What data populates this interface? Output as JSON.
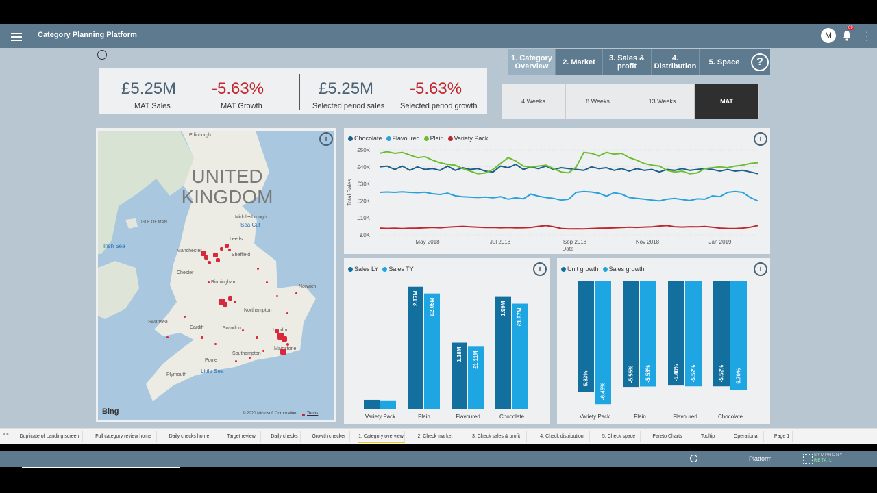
{
  "app": {
    "title": "Category Planning Platform",
    "avatar_initial": "M",
    "notifications": "69"
  },
  "nav": [
    {
      "label": "1. Category Overview",
      "active": true
    },
    {
      "label": "2. Market"
    },
    {
      "label": "3. Sales & profit"
    },
    {
      "label": "4. Distribution"
    },
    {
      "label": "5. Space"
    }
  ],
  "help_icon": "?",
  "periods": [
    "4 Weeks",
    "8 Weeks",
    "13 Weeks",
    "MAT"
  ],
  "selected_period": "MAT",
  "kpis": [
    {
      "value": "£5.25M",
      "label": "MAT Sales"
    },
    {
      "value": "-5.63%",
      "label": "MAT Growth"
    },
    {
      "value": "£5.25M",
      "label": "Selected period sales"
    },
    {
      "value": "-5.63%",
      "label": "Selected period growth"
    }
  ],
  "map": {
    "country": "UNITED KINGDOM",
    "places": [
      "Edinburgh",
      "Middlesbrough",
      "Sea Cut",
      "ISLE OF MAN",
      "Irish Sea",
      "Leeds",
      "Manchester",
      "Sheffield",
      "Chester",
      "Birmingham",
      "Norwich",
      "Northampton",
      "Swansea",
      "Cardiff",
      "Swindon",
      "London",
      "Maidstone",
      "Southampton",
      "Poole",
      "Plymouth",
      "Little Sea"
    ],
    "logo": "Bing",
    "copyright": "© 2020 Microsoft Corporation",
    "terms": "Terms"
  },
  "line_chart": {
    "ylabel": "Total Sales",
    "xlabel": "Date",
    "yticks": [
      "£50K",
      "£40K",
      "£30K",
      "£20K",
      "£10K",
      "£0K"
    ],
    "xticks": [
      "May 2018",
      "Jul 2018",
      "Sep 2018",
      "Nov 2018",
      "Jan 2019"
    ]
  },
  "bar_chart_1": {
    "legend": [
      "Sales LY",
      "Sales TY"
    ],
    "categories": [
      "Variety Pack",
      "Plain",
      "Flavoured",
      "Chocolate"
    ]
  },
  "bar_chart_2": {
    "legend": [
      "Unit growth",
      "Sales growth"
    ],
    "categories": [
      "Variety Pack",
      "Plain",
      "Flavoured",
      "Chocolate"
    ]
  },
  "chart_data": [
    {
      "type": "line",
      "ylim": [
        0,
        50000
      ],
      "x_range": [
        "2018-04-01",
        "2019-03-25"
      ],
      "series": [
        {
          "name": "Chocolate",
          "color": "#1b5f8c",
          "values": [
            40000,
            40500,
            38500,
            40500,
            38000,
            40000,
            38500,
            39000,
            38000,
            40500,
            38000,
            39500,
            38500,
            39000,
            37500,
            37000,
            40500,
            39500,
            41500,
            38500,
            40000,
            39000,
            40500,
            38500,
            39500,
            39000,
            38500,
            38000,
            40000,
            39000,
            39500,
            38000,
            39000,
            37500,
            39000,
            38000,
            38500,
            37000,
            38500,
            38000,
            39000,
            38000,
            38500,
            39000,
            38500,
            37500,
            38500,
            37500,
            38000,
            37000,
            36000
          ]
        },
        {
          "name": "Flavoured",
          "color": "#2aa0dc",
          "values": [
            25000,
            25200,
            25000,
            25300,
            25000,
            24800,
            25100,
            24200,
            23800,
            24500,
            23000,
            22500,
            22200,
            22000,
            22300,
            21800,
            22500,
            21000,
            21800,
            21200,
            24000,
            22800,
            22000,
            21500,
            20500,
            21000,
            25000,
            25500,
            25200,
            24500,
            22800,
            24800,
            24000,
            22000,
            21500,
            21000,
            20500,
            20000,
            21000,
            21500,
            20800,
            20200,
            21200,
            21000,
            23000,
            22500,
            25000,
            25500,
            25000,
            22000,
            20000
          ]
        },
        {
          "name": "Plain",
          "color": "#6ebd30",
          "values": [
            48000,
            49000,
            48000,
            48500,
            47000,
            45500,
            46000,
            44000,
            42500,
            41500,
            41000,
            39000,
            37500,
            36000,
            36500,
            38500,
            42000,
            45500,
            43500,
            40500,
            40000,
            40500,
            41000,
            39000,
            37000,
            36500,
            40000,
            48500,
            48000,
            46500,
            48500,
            47500,
            48000,
            45500,
            44000,
            42000,
            41000,
            40500,
            38000,
            37000,
            37500,
            36000,
            36500,
            39000,
            39500,
            40000,
            39500,
            40500,
            41000,
            42000,
            42500
          ]
        },
        {
          "name": "Variety Pack",
          "color": "#c0272d",
          "values": [
            4000,
            3800,
            3900,
            3700,
            3900,
            4000,
            4200,
            4400,
            4200,
            4500,
            4800,
            5000,
            4700,
            4500,
            4300,
            4400,
            4200,
            4300,
            4100,
            4200,
            4400,
            5000,
            5500,
            4800,
            3800,
            3500,
            3600,
            3500,
            3700,
            3900,
            4000,
            4100,
            4300,
            4500,
            4400,
            4600,
            4700,
            5200,
            5500,
            4800,
            4600,
            4800,
            4700,
            4900,
            4500,
            4000,
            3800,
            3700,
            4000,
            4500,
            5500
          ]
        }
      ]
    },
    {
      "type": "bar",
      "categories": [
        "Variety Pack",
        "Plain",
        "Flavoured",
        "Chocolate"
      ],
      "ylim": [
        0,
        2.3
      ],
      "series": [
        {
          "name": "Sales LY",
          "color": "#13709e",
          "values": [
            0.17,
            2.17,
            1.18,
            1.99
          ],
          "labels": [
            "",
            "2.17M",
            "1.18M",
            "1.99M"
          ]
        },
        {
          "name": "Sales TY",
          "color": "#1ea6e3",
          "values": [
            0.16,
            2.05,
            1.11,
            1.87
          ],
          "labels": [
            "",
            "£2.05M",
            "£1.11M",
            "£1.87M"
          ]
        }
      ]
    },
    {
      "type": "bar",
      "categories": [
        "Variety Pack",
        "Plain",
        "Flavoured",
        "Chocolate"
      ],
      "ylim": [
        -6.8,
        0
      ],
      "series": [
        {
          "name": "Unit growth",
          "color": "#13709e",
          "values": [
            -5.83,
            -5.55,
            -5.48,
            -5.52
          ],
          "labels": [
            "-5.83%",
            "-5.55%",
            "-5.48%",
            "-5.52%"
          ]
        },
        {
          "name": "Sales growth",
          "color": "#1ea6e3",
          "values": [
            -6.45,
            -5.53,
            -5.52,
            -5.7
          ],
          "labels": [
            "-6.45%",
            "-5.53%",
            "-5.52%",
            "-5.70%"
          ]
        }
      ]
    }
  ],
  "page_tabs": [
    "Duplicate of Landing screen",
    "Full category review home",
    "Daily checks home",
    "Target review",
    "Daily checks",
    "Growth checker",
    "1. Category overview",
    "2. Check market",
    "3. Check sales & profit",
    "4. Check distribution",
    "5. Check space",
    "Pareto Charts",
    "Tooltip",
    "Operational",
    "Page 1"
  ],
  "active_page_tab": "1. Category overview",
  "status": {
    "platform": "Platform",
    "brand_top": "SYMPHONY",
    "brand_bottom": "RETAIL"
  }
}
